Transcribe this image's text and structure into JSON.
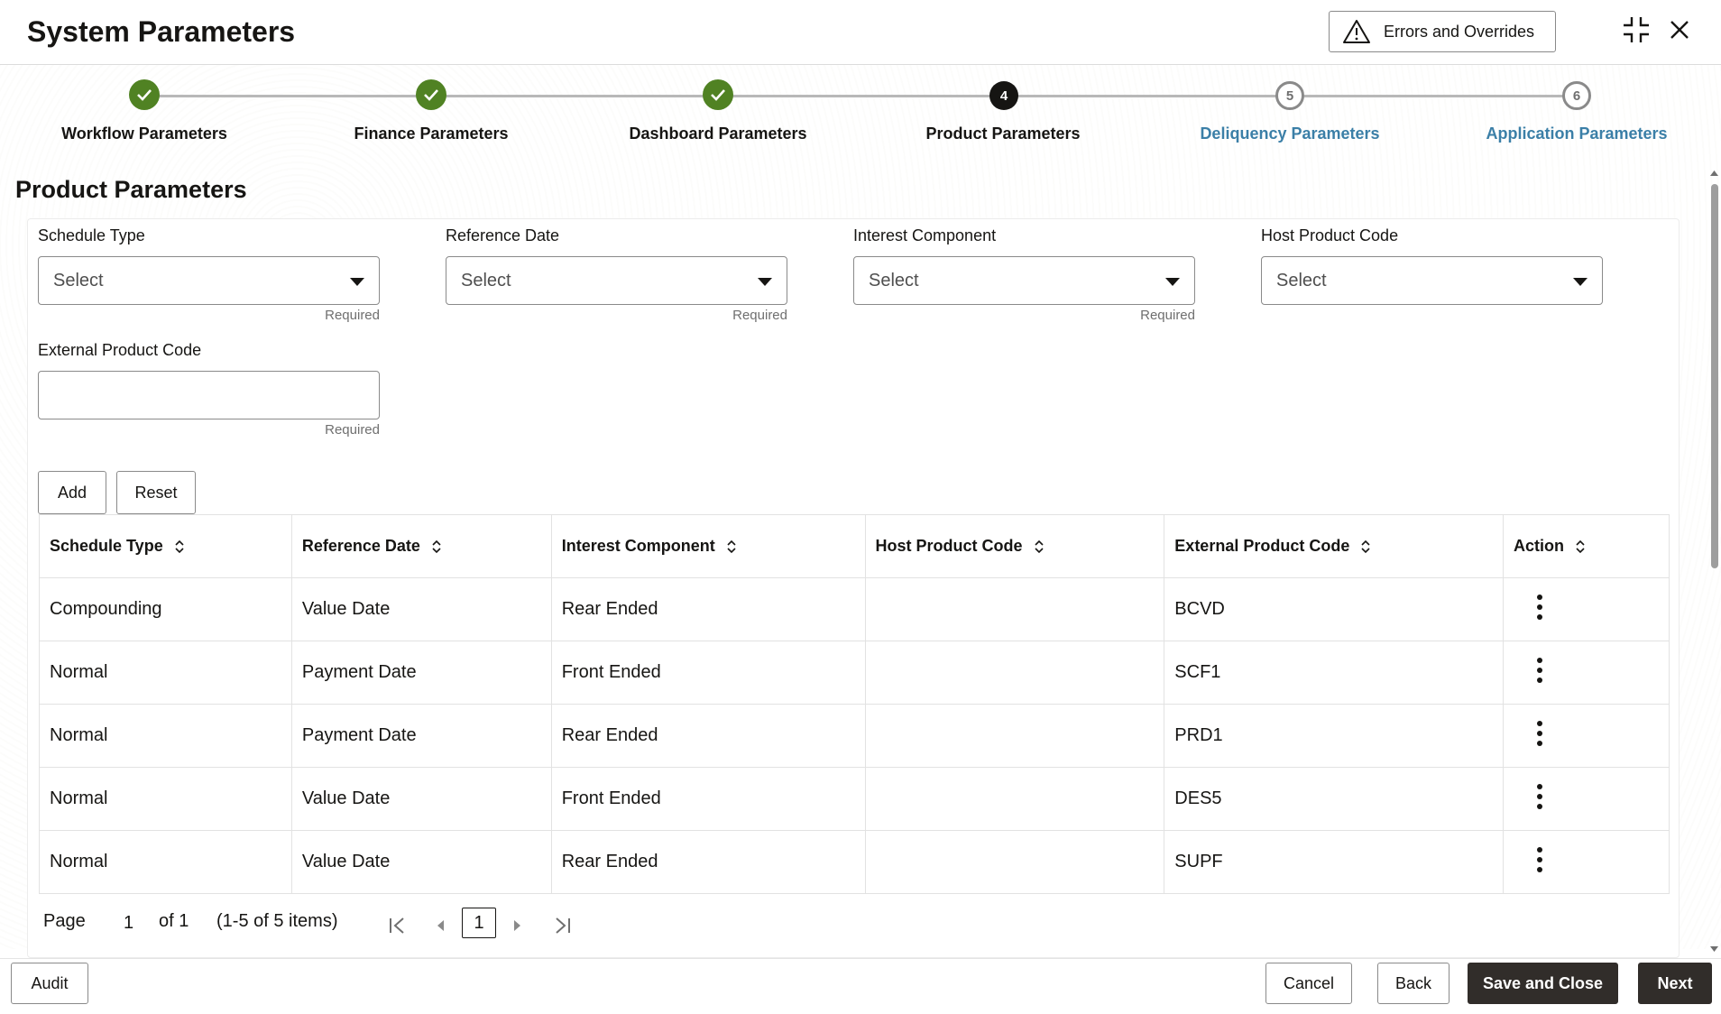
{
  "header": {
    "title": "System Parameters",
    "errors_button": "Errors and Overrides"
  },
  "train": {
    "steps": [
      {
        "label": "Workflow Parameters",
        "state": "done"
      },
      {
        "label": "Finance Parameters",
        "state": "done"
      },
      {
        "label": "Dashboard Parameters",
        "state": "done"
      },
      {
        "label": "Product Parameters",
        "state": "current",
        "number": "4"
      },
      {
        "label": "Deliquency Parameters",
        "state": "todo",
        "number": "5"
      },
      {
        "label": "Application Parameters",
        "state": "todo",
        "number": "6"
      }
    ]
  },
  "section": {
    "title": "Product Parameters"
  },
  "form": {
    "schedule_type": {
      "label": "Schedule Type",
      "value": "Select",
      "hint": "Required"
    },
    "reference_date": {
      "label": "Reference Date",
      "value": "Select",
      "hint": "Required"
    },
    "interest_component": {
      "label": "Interest Component",
      "value": "Select",
      "hint": "Required"
    },
    "host_product_code": {
      "label": "Host Product Code",
      "value": "Select"
    },
    "external_product_code": {
      "label": "External Product Code",
      "value": "",
      "hint": "Required"
    },
    "add_label": "Add",
    "reset_label": "Reset"
  },
  "table": {
    "columns": [
      "Schedule Type",
      "Reference Date",
      "Interest Component",
      "Host Product Code",
      "External Product Code",
      "Action"
    ],
    "rows": [
      [
        "Compounding",
        "Value Date",
        "Rear Ended",
        "",
        "BCVD"
      ],
      [
        "Normal",
        "Payment Date",
        "Front Ended",
        "",
        "SCF1"
      ],
      [
        "Normal",
        "Payment Date",
        "Rear Ended",
        "",
        "PRD1"
      ],
      [
        "Normal",
        "Value Date",
        "Front Ended",
        "",
        "DES5"
      ],
      [
        "Normal",
        "Value Date",
        "Rear Ended",
        "",
        "SUPF"
      ]
    ]
  },
  "pagination": {
    "page_label": "Page",
    "page_value": "1",
    "of_label": "of 1",
    "items_label": "(1-5 of 5 items)",
    "current_page": "1"
  },
  "footer": {
    "audit": "Audit",
    "cancel": "Cancel",
    "back": "Back",
    "save_close": "Save and Close",
    "next": "Next"
  },
  "colors": {
    "done": "#508223",
    "link": "#3b7fa7",
    "dark_button": "#312d2a"
  }
}
